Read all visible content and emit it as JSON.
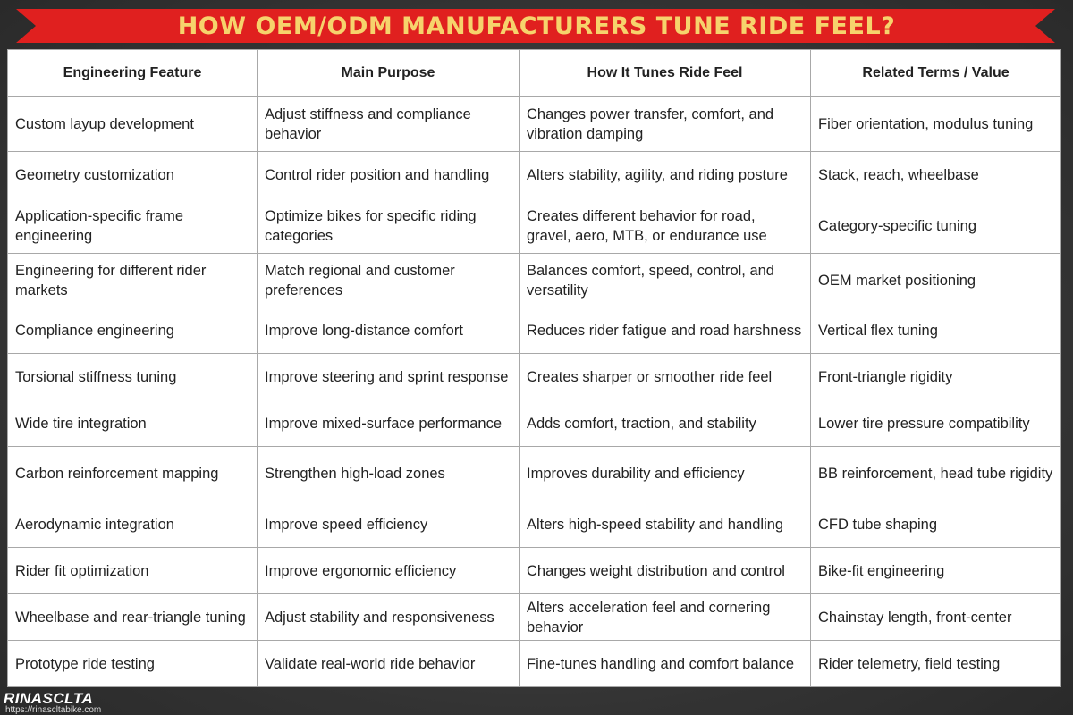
{
  "header": {
    "title": "HOW OEM/ODM MANUFACTURERS TUNE RIDE FEEL?"
  },
  "table": {
    "columns": [
      "Engineering Feature",
      "Main Purpose",
      "How It Tunes Ride Feel",
      "Related Terms / Value"
    ],
    "rows": [
      [
        "Custom layup development",
        "Adjust stiffness and compliance behavior",
        "Changes power transfer, comfort, and vibration damping",
        "Fiber orientation, modulus tuning"
      ],
      [
        "Geometry customization",
        "Control rider position and handling",
        "Alters stability, agility, and riding posture",
        "Stack, reach, wheelbase"
      ],
      [
        "Application-specific frame engineering",
        "Optimize bikes for specific riding categories",
        "Creates different behavior for road, gravel, aero, MTB, or endurance use",
        "Category-specific tuning"
      ],
      [
        "Engineering for different rider markets",
        "Match regional and customer preferences",
        "Balances comfort, speed, control, and versatility",
        "OEM market positioning"
      ],
      [
        "Compliance engineering",
        "Improve long-distance comfort",
        "Reduces rider fatigue and road harshness",
        "Vertical flex tuning"
      ],
      [
        "Torsional stiffness tuning",
        "Improve steering and sprint response",
        "Creates sharper or smoother ride feel",
        "Front-triangle rigidity"
      ],
      [
        "Wide tire integration",
        "Improve mixed-surface performance",
        "Adds comfort, traction, and stability",
        "Lower tire pressure compatibility"
      ],
      [
        "Carbon reinforcement mapping",
        "Strengthen high-load zones",
        "Improves durability and efficiency",
        "BB reinforcement, head tube rigidity"
      ],
      [
        "Aerodynamic integration",
        "Improve speed efficiency",
        "Alters high-speed stability and handling",
        "CFD tube shaping"
      ],
      [
        "Rider fit optimization",
        "Improve ergonomic efficiency",
        "Changes weight distribution and control",
        "Bike-fit engineering"
      ],
      [
        "Wheelbase and rear-triangle tuning",
        "Adjust stability and responsiveness",
        "Alters acceleration feel and cornering behavior",
        "Chainstay length, front-center"
      ],
      [
        "Prototype ride testing",
        "Validate real-world ride behavior",
        "Fine-tunes handling and comfort balance",
        "Rider telemetry, field testing"
      ]
    ]
  },
  "footer": {
    "brand": "RINASCLTA",
    "url": "https://rinascltabike.com"
  }
}
